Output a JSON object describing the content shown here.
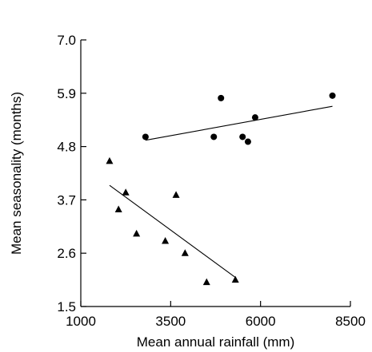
{
  "chart_data": {
    "type": "scatter",
    "title": "",
    "xlabel": "Mean annual rainfall (mm)",
    "ylabel": "Mean seasonality (months)",
    "xlim": [
      1000,
      8500
    ],
    "ylim": [
      1.5,
      7.0
    ],
    "x_ticks": [
      "1000",
      "3500",
      "6000",
      "8500"
    ],
    "y_ticks": [
      "1.5",
      "2.6",
      "3.7",
      "4.8",
      "5.9",
      "7.0"
    ],
    "grid": false,
    "legend": "none",
    "series": [
      {
        "marker": "circle",
        "color": "#000000",
        "points": [
          {
            "x": 2800,
            "y": 5.0
          },
          {
            "x": 4900,
            "y": 5.8
          },
          {
            "x": 4700,
            "y": 5.0
          },
          {
            "x": 5500,
            "y": 5.0
          },
          {
            "x": 5650,
            "y": 4.9
          },
          {
            "x": 5850,
            "y": 5.4
          },
          {
            "x": 8000,
            "y": 5.85
          }
        ],
        "fit_line": {
          "x": [
            2800,
            8000
          ],
          "y": [
            4.93,
            5.63
          ]
        }
      },
      {
        "marker": "triangle",
        "color": "#000000",
        "points": [
          {
            "x": 1800,
            "y": 4.5
          },
          {
            "x": 2050,
            "y": 3.5
          },
          {
            "x": 2250,
            "y": 3.85
          },
          {
            "x": 2550,
            "y": 3.0
          },
          {
            "x": 3350,
            "y": 2.85
          },
          {
            "x": 3650,
            "y": 3.8
          },
          {
            "x": 3900,
            "y": 2.6
          },
          {
            "x": 4500,
            "y": 2.0
          },
          {
            "x": 5300,
            "y": 2.05
          }
        ],
        "fit_line": {
          "x": [
            1800,
            5300
          ],
          "y": [
            4.0,
            2.1
          ]
        }
      }
    ]
  }
}
